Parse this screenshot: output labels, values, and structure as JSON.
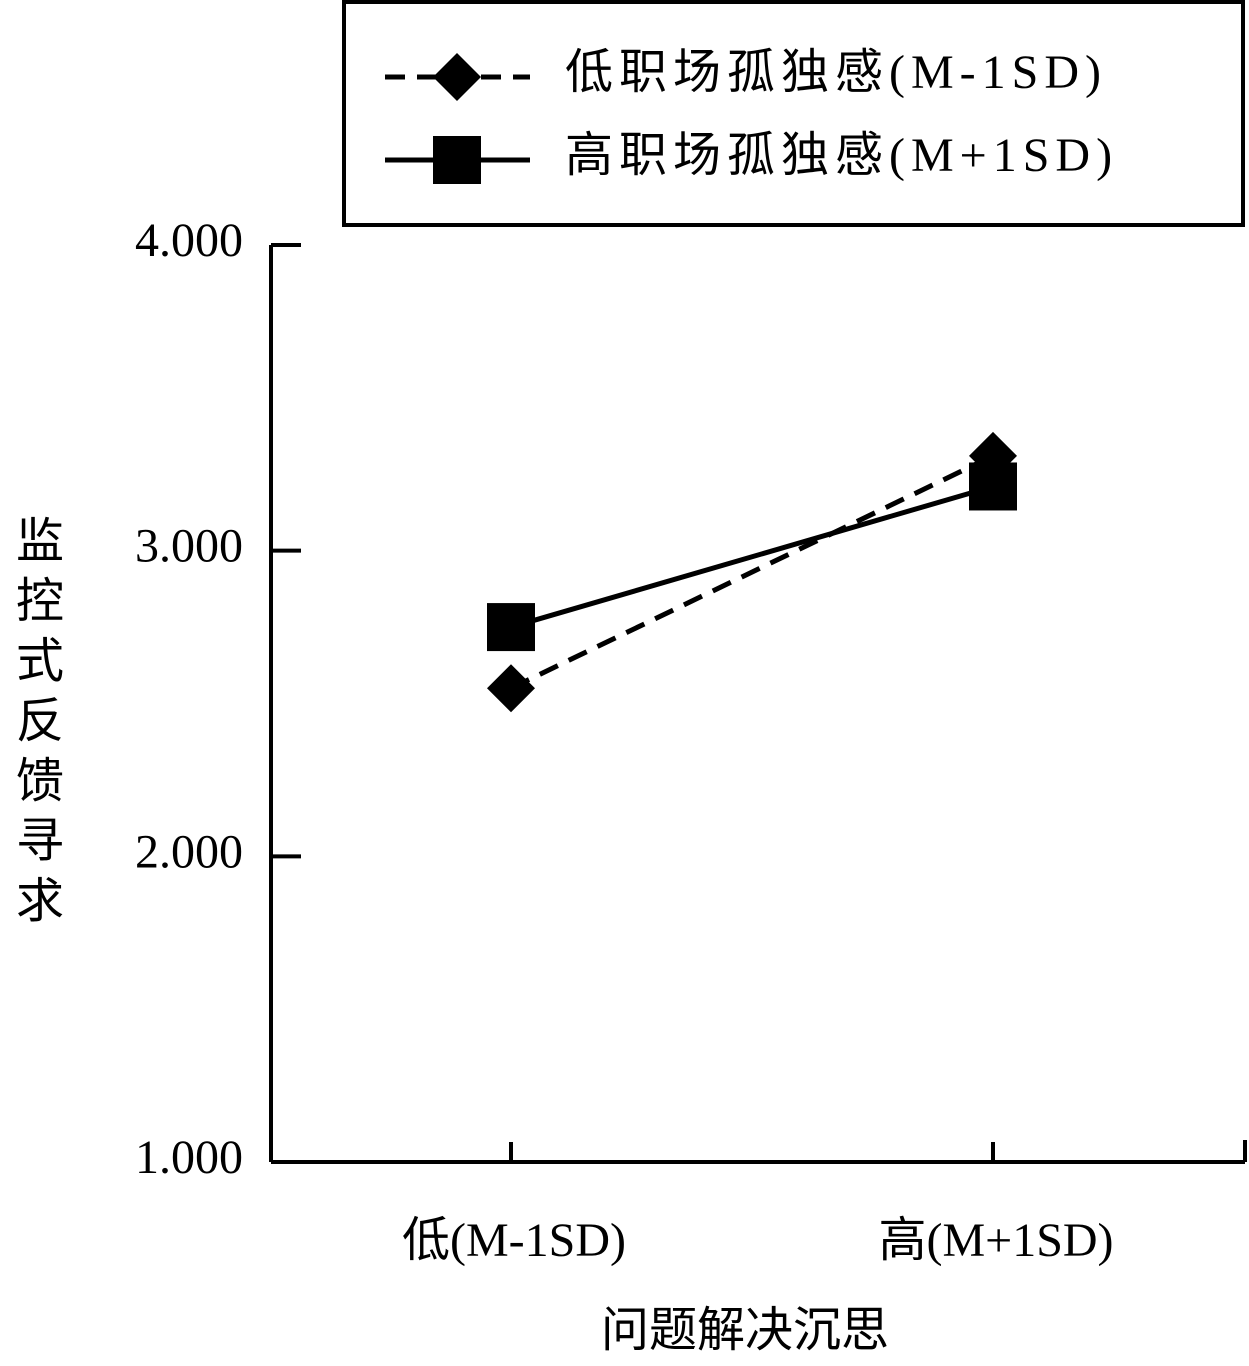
{
  "chart_data": {
    "type": "line",
    "xlabel": "问题解决沉思",
    "ylabel": "监控式反馈寻求",
    "categories": [
      "低(M-1SD)",
      "高(M+1SD)"
    ],
    "series": [
      {
        "name": "低职场孤独感(M-1SD)",
        "color": "#000000",
        "line_style": "dashed",
        "marker": "diamond",
        "values": [
          2.55,
          3.31
        ]
      },
      {
        "name": "高职场孤独感(M+1SD)",
        "color": "#000000",
        "line_style": "solid",
        "marker": "square",
        "values": [
          2.75,
          3.21
        ]
      }
    ],
    "ylim": [
      1,
      4
    ],
    "yticks": [
      {
        "value": 1,
        "label": "1.000"
      },
      {
        "value": 2,
        "label": "2.000"
      },
      {
        "value": 3,
        "label": "3.000"
      },
      {
        "value": 4,
        "label": "4.000"
      }
    ],
    "legend": "top-right"
  }
}
